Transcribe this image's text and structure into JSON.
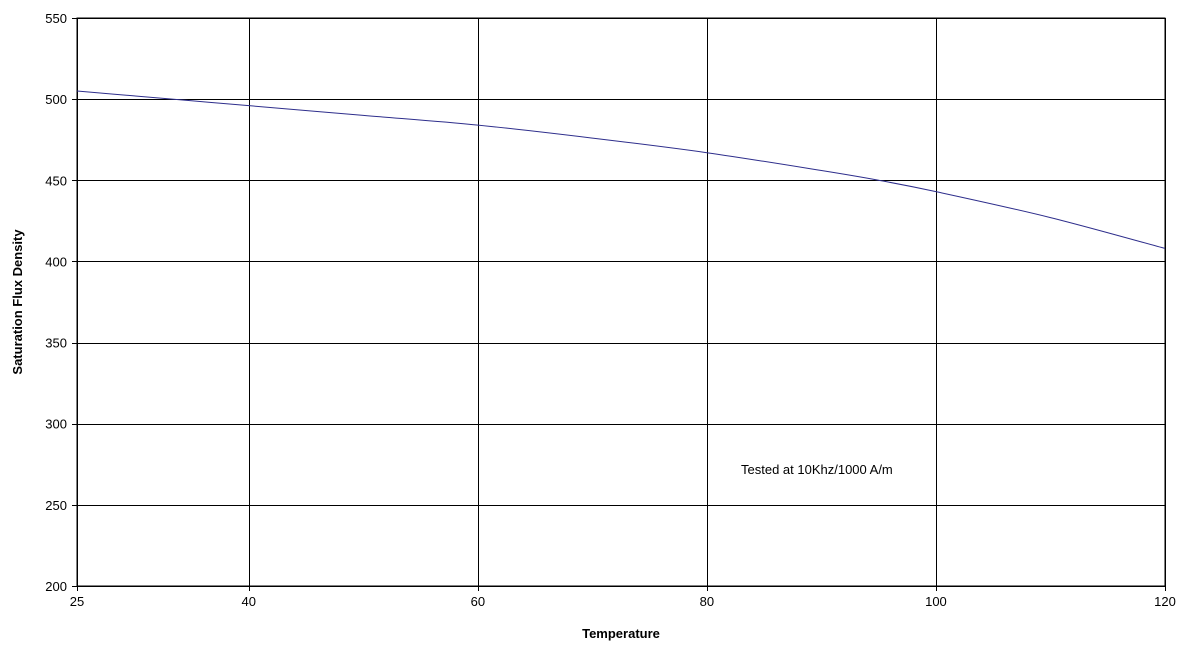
{
  "chart_data": {
    "type": "line",
    "title": "",
    "xlabel": "Temperature",
    "ylabel": "Saturation Flux Density",
    "x_ticks": [
      25,
      40,
      60,
      80,
      100,
      120
    ],
    "y_ticks": [
      200,
      250,
      300,
      350,
      400,
      450,
      500,
      550
    ],
    "xlim": [
      25,
      120
    ],
    "ylim": [
      200,
      550
    ],
    "grid": true,
    "legend": "none",
    "annotation": "Tested at 10Khz/1000 A/m",
    "line_color": "#2e2e8c",
    "series": [
      {
        "x": [
          25,
          30,
          35,
          40,
          50,
          60,
          70,
          80,
          90,
          95,
          100,
          110,
          120
        ],
        "y": [
          505,
          502,
          499,
          496,
          490,
          484,
          476,
          467,
          456,
          450,
          443,
          427,
          408
        ]
      }
    ]
  }
}
